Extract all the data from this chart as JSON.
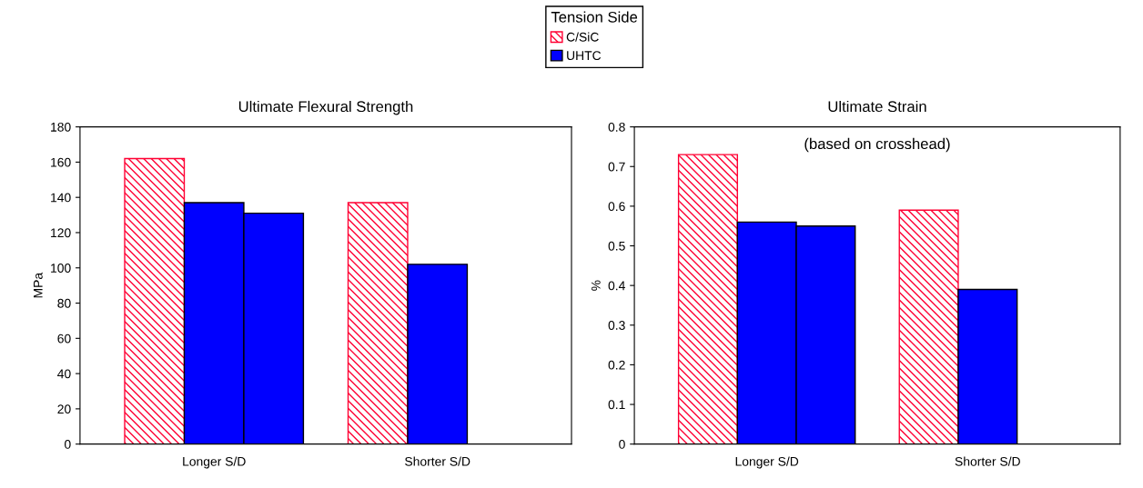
{
  "chart_data": [
    {
      "type": "bar",
      "title": "Ultimate Flexural Strength",
      "ylabel": "MPa",
      "categories": [
        "Longer S/D",
        "Shorter S/D"
      ],
      "series": [
        {
          "name": "C/SiC",
          "color": "#ff0033",
          "values": [
            162,
            137
          ]
        },
        {
          "name": "UHTC",
          "color": "#0000ff",
          "values": [
            137,
            102
          ]
        },
        {
          "color": "#0000ff",
          "values": [
            131,
            null
          ]
        }
      ],
      "ylim": [
        0,
        180
      ],
      "yticks": [
        0,
        20,
        40,
        60,
        80,
        100,
        120,
        140,
        160,
        180
      ],
      "grid": false,
      "legend": "top",
      "legend_title": "Tension Side"
    },
    {
      "type": "bar",
      "title": "Ultimate Strain",
      "subtitle": "(based on crosshead)",
      "ylabel": "%",
      "categories": [
        "Longer S/D",
        "Shorter S/D"
      ],
      "series": [
        {
          "name": "C/SiC",
          "color": "#ff0033",
          "values": [
            0.73,
            0.59
          ]
        },
        {
          "name": "UHTC",
          "color": "#0000ff",
          "values": [
            0.56,
            0.39
          ]
        },
        {
          "color": "#0000ff",
          "values": [
            0.55,
            null
          ]
        }
      ],
      "ylim": [
        0,
        0.8
      ],
      "yticks": [
        0,
        0.1,
        0.2,
        0.3,
        0.4,
        0.5,
        0.6,
        0.7,
        0.8
      ],
      "grid": false
    }
  ]
}
